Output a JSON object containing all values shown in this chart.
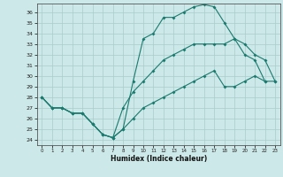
{
  "xlabel": "Humidex (Indice chaleur)",
  "bg_color": "#cce8e8",
  "grid_color": "#aacccc",
  "line_color": "#1a7a6e",
  "xlim": [
    -0.5,
    23.5
  ],
  "ylim": [
    23.5,
    36.8
  ],
  "yticks": [
    24,
    25,
    26,
    27,
    28,
    29,
    30,
    31,
    32,
    33,
    34,
    35,
    36
  ],
  "xticks": [
    0,
    1,
    2,
    3,
    4,
    5,
    6,
    7,
    8,
    9,
    10,
    11,
    12,
    13,
    14,
    15,
    16,
    17,
    18,
    19,
    20,
    21,
    22,
    23
  ],
  "curve_top_x": [
    0,
    1,
    2,
    3,
    4,
    5,
    6,
    7,
    8,
    9,
    10,
    11,
    12,
    13,
    14,
    15,
    16,
    17,
    18,
    19,
    20,
    21,
    22
  ],
  "curve_top_y": [
    28.0,
    27.0,
    27.0,
    26.5,
    26.5,
    25.5,
    24.5,
    24.2,
    25.0,
    29.5,
    33.5,
    34.0,
    35.5,
    35.5,
    36.0,
    36.5,
    36.7,
    36.5,
    35.0,
    33.5,
    32.0,
    31.5,
    29.5
  ],
  "curve_mid_x": [
    0,
    1,
    2,
    3,
    4,
    5,
    6,
    7,
    8,
    9,
    10,
    11,
    12,
    13,
    14,
    15,
    16,
    17,
    18,
    19,
    20,
    21,
    22,
    23
  ],
  "curve_mid_y": [
    28.0,
    27.0,
    27.0,
    26.5,
    26.5,
    25.5,
    24.5,
    24.2,
    27.0,
    28.5,
    29.5,
    30.5,
    31.5,
    32.0,
    32.5,
    33.0,
    33.0,
    33.0,
    33.0,
    33.5,
    33.0,
    32.0,
    31.5,
    29.5
  ],
  "curve_bot_x": [
    0,
    1,
    2,
    3,
    4,
    5,
    6,
    7,
    8,
    9,
    10,
    11,
    12,
    13,
    14,
    15,
    16,
    17,
    18,
    19,
    20,
    21,
    22,
    23
  ],
  "curve_bot_y": [
    28.0,
    27.0,
    27.0,
    26.5,
    26.5,
    25.5,
    24.5,
    24.2,
    25.0,
    26.0,
    27.0,
    27.5,
    28.0,
    28.5,
    29.0,
    29.5,
    30.0,
    30.5,
    29.0,
    29.0,
    29.5,
    30.0,
    29.5,
    29.5
  ]
}
